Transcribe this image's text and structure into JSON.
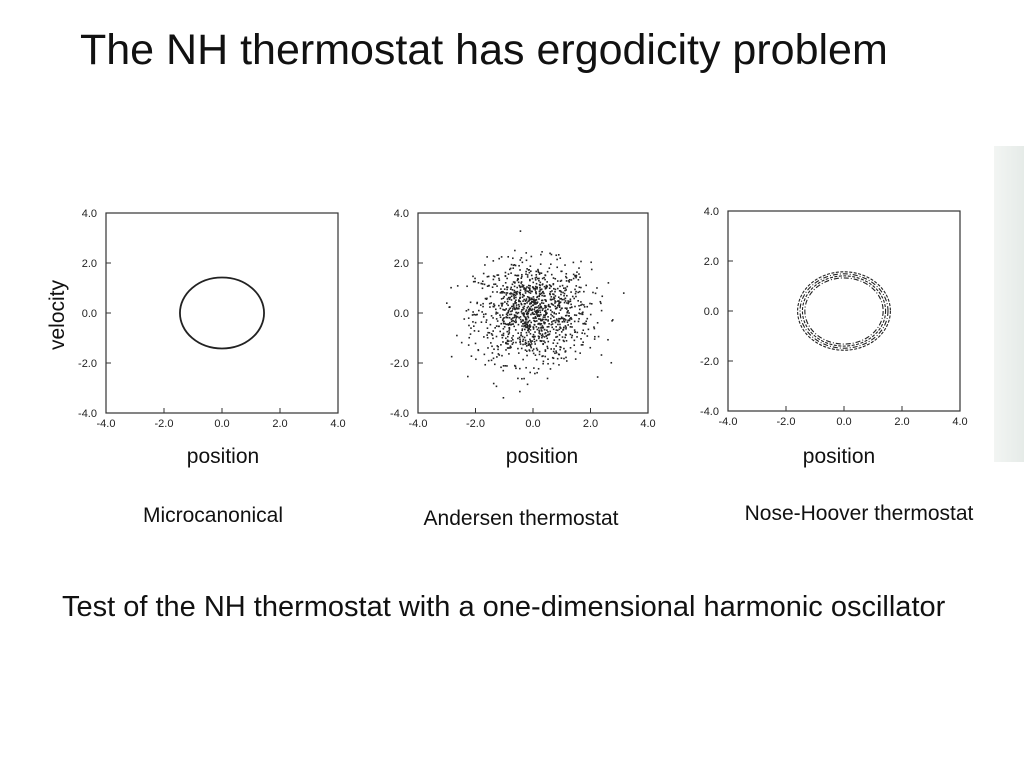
{
  "title": "The NH thermostat has ergodicity problem",
  "y_axis_label": "velocity",
  "note": "Test of the NH thermostat with a one-dimensional harmonic oscillator",
  "chart_data": [
    {
      "type": "scatter",
      "shape": "single-closed-curve",
      "caption": "Microcanonical",
      "xlabel": "position",
      "ylabel": "velocity",
      "xlim": [
        -4.0,
        4.0
      ],
      "ylim": [
        -4.0,
        4.0
      ],
      "x_ticks": [
        "-4.0",
        "-2.0",
        "0.0",
        "2.0",
        "4.0"
      ],
      "y_ticks": [
        "-4.0",
        "-2.0",
        "0.0",
        "2.0",
        "4.0"
      ],
      "curve": {
        "center": [
          0.0,
          0.0
        ],
        "radius_x": 1.45,
        "radius_y": 1.42
      }
    },
    {
      "type": "scatter",
      "shape": "random-cloud",
      "caption": "Andersen thermostat",
      "xlabel": "position",
      "ylabel": "velocity",
      "xlim": [
        -4.0,
        4.0
      ],
      "ylim": [
        -4.0,
        4.0
      ],
      "x_ticks": [
        "-4.0",
        "-2.0",
        "0.0",
        "2.0",
        "4.0"
      ],
      "y_ticks": [
        "-4.0",
        "-2.0",
        "0.0",
        "2.0",
        "4.0"
      ],
      "cloud": {
        "center": [
          0.0,
          0.0
        ],
        "std": 1.0,
        "max_abs": 3.4,
        "n_points": 1200
      }
    },
    {
      "type": "scatter",
      "shape": "annular-band",
      "caption": "Nose-Hoover thermostat",
      "xlabel": "position",
      "ylabel": "velocity",
      "xlim": [
        -4.0,
        4.0
      ],
      "ylim": [
        -4.0,
        4.0
      ],
      "x_ticks": [
        "-4.0",
        "-2.0",
        "0.0",
        "2.0",
        "4.0"
      ],
      "y_ticks": [
        "-4.0",
        "-2.0",
        "0.0",
        "2.0",
        "4.0"
      ],
      "band": {
        "center": [
          0.0,
          0.0
        ],
        "inner_radius": 1.35,
        "outer_radius": 1.6,
        "n_loops": 4
      }
    }
  ]
}
